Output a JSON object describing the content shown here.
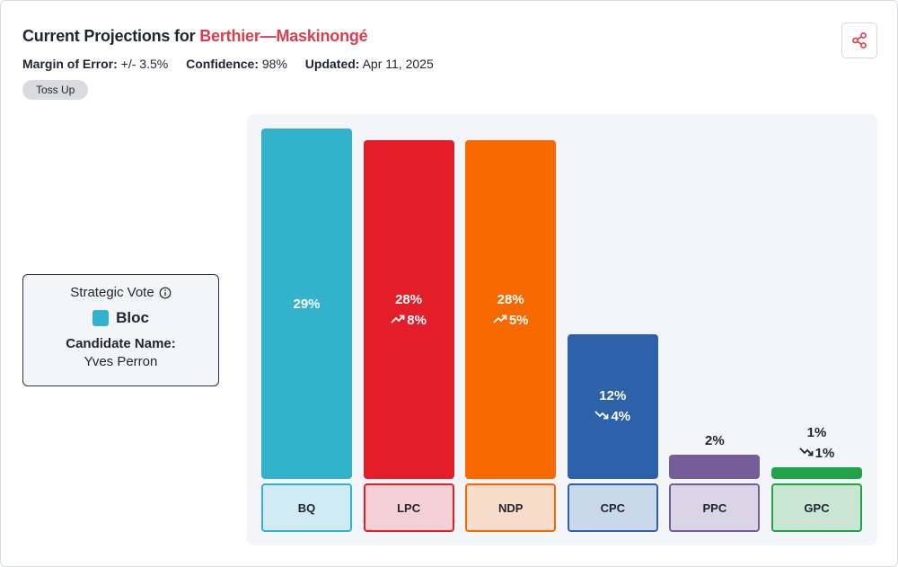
{
  "header": {
    "title_prefix": "Current Projections for ",
    "riding": "Berthier—Maskinongé",
    "margin_label": "Margin of Error:",
    "margin_value": "+/- 3.5%",
    "confidence_label": "Confidence:",
    "confidence_value": "98%",
    "updated_label": "Updated:",
    "updated_value": "Apr 11, 2025",
    "badge": "Toss Up"
  },
  "strategic_vote": {
    "title": "Strategic Vote",
    "party": "Bloc",
    "party_color": "#33b2cc",
    "candidate_label": "Candidate Name:",
    "candidate": "Yves Perron"
  },
  "chart_data": {
    "type": "bar",
    "categories": [
      "BQ",
      "LPC",
      "NDP",
      "CPC",
      "PPC",
      "GPC"
    ],
    "values": [
      29,
      28,
      28,
      12,
      2,
      1
    ],
    "value_labels": [
      "29%",
      "28%",
      "28%",
      "12%",
      "2%",
      "1%"
    ],
    "changes": [
      {
        "dir": "none",
        "label": ""
      },
      {
        "dir": "up",
        "label": "8%"
      },
      {
        "dir": "up",
        "label": "5%"
      },
      {
        "dir": "down",
        "label": "4%"
      },
      {
        "dir": "none",
        "label": ""
      },
      {
        "dir": "down",
        "label": "1%"
      }
    ],
    "colors": [
      "#33b2cc",
      "#e31e28",
      "#f76900",
      "#2d62aa",
      "#735e9a",
      "#22a249"
    ],
    "category_bg": [
      "#d0ebf3",
      "#f4cfd3",
      "#f8dcca",
      "#cad8ec",
      "#d9d5e6",
      "#c9e6d3"
    ],
    "ylim": [
      0,
      29
    ]
  }
}
